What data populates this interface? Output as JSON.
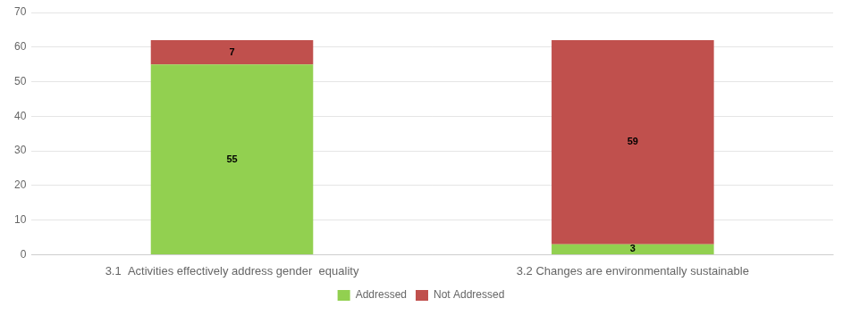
{
  "chart_data": {
    "type": "bar",
    "stacked": true,
    "categories": [
      "3.1  Activities effectively address gender  equality",
      "3.2 Changes are environmentally sustainable"
    ],
    "series": [
      {
        "name": "Addressed",
        "color": "#92D050",
        "values": [
          55,
          3
        ]
      },
      {
        "name": "Not Addressed",
        "color": "#C0504D",
        "values": [
          7,
          59
        ]
      }
    ],
    "ylim": [
      0,
      70
    ],
    "yticks": [
      0,
      10,
      20,
      30,
      40,
      50,
      60,
      70
    ],
    "grid": true,
    "legend": "bottom",
    "data_labels": true
  }
}
